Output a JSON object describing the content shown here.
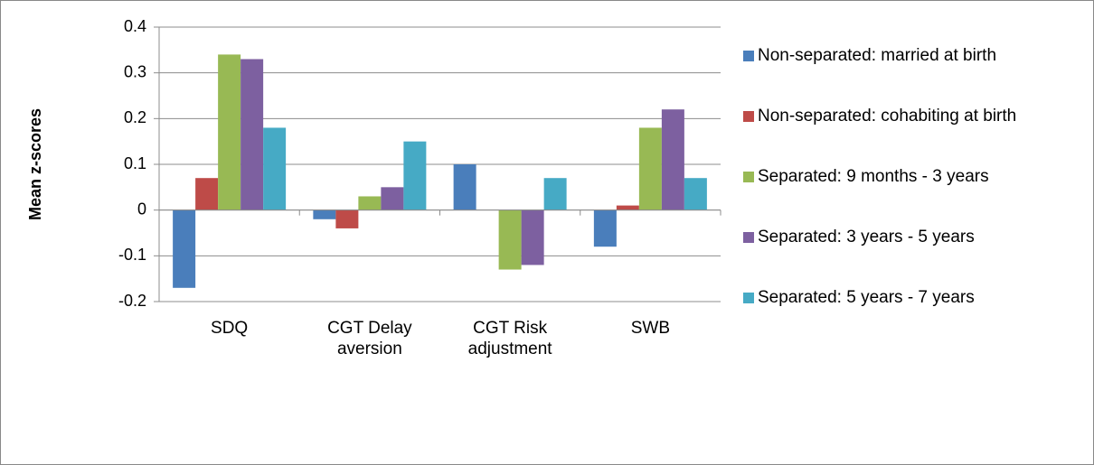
{
  "chart_data": {
    "type": "bar",
    "y_label": "Mean z-scores",
    "categories": [
      "SDQ",
      "CGT Delay aversion",
      "CGT Risk adjustment",
      "SWB"
    ],
    "series": [
      {
        "name": "Non-separated: married at birth",
        "color": "#4a7ebb",
        "values": [
          -0.17,
          -0.02,
          0.1,
          -0.08
        ]
      },
      {
        "name": "Non-separated: cohabiting at birth",
        "color": "#be4b48",
        "values": [
          0.07,
          -0.04,
          0,
          0.01
        ]
      },
      {
        "name": "Separated: 9 months - 3 years",
        "color": "#98b954",
        "values": [
          0.34,
          0.03,
          -0.13,
          0.18
        ]
      },
      {
        "name": "Separated: 3 years - 5 years",
        "color": "#7d60a0",
        "values": [
          0.33,
          0.05,
          -0.12,
          0.22
        ]
      },
      {
        "name": "Separated: 5 years - 7 years",
        "color": "#46aac5",
        "values": [
          0.18,
          0.15,
          0.07,
          0.07
        ]
      }
    ],
    "ylim": [
      -0.2,
      0.4
    ],
    "yticks": [
      -0.2,
      -0.1,
      0,
      0.1,
      0.2,
      0.3,
      0.4
    ],
    "grid": true,
    "legend": "right"
  }
}
